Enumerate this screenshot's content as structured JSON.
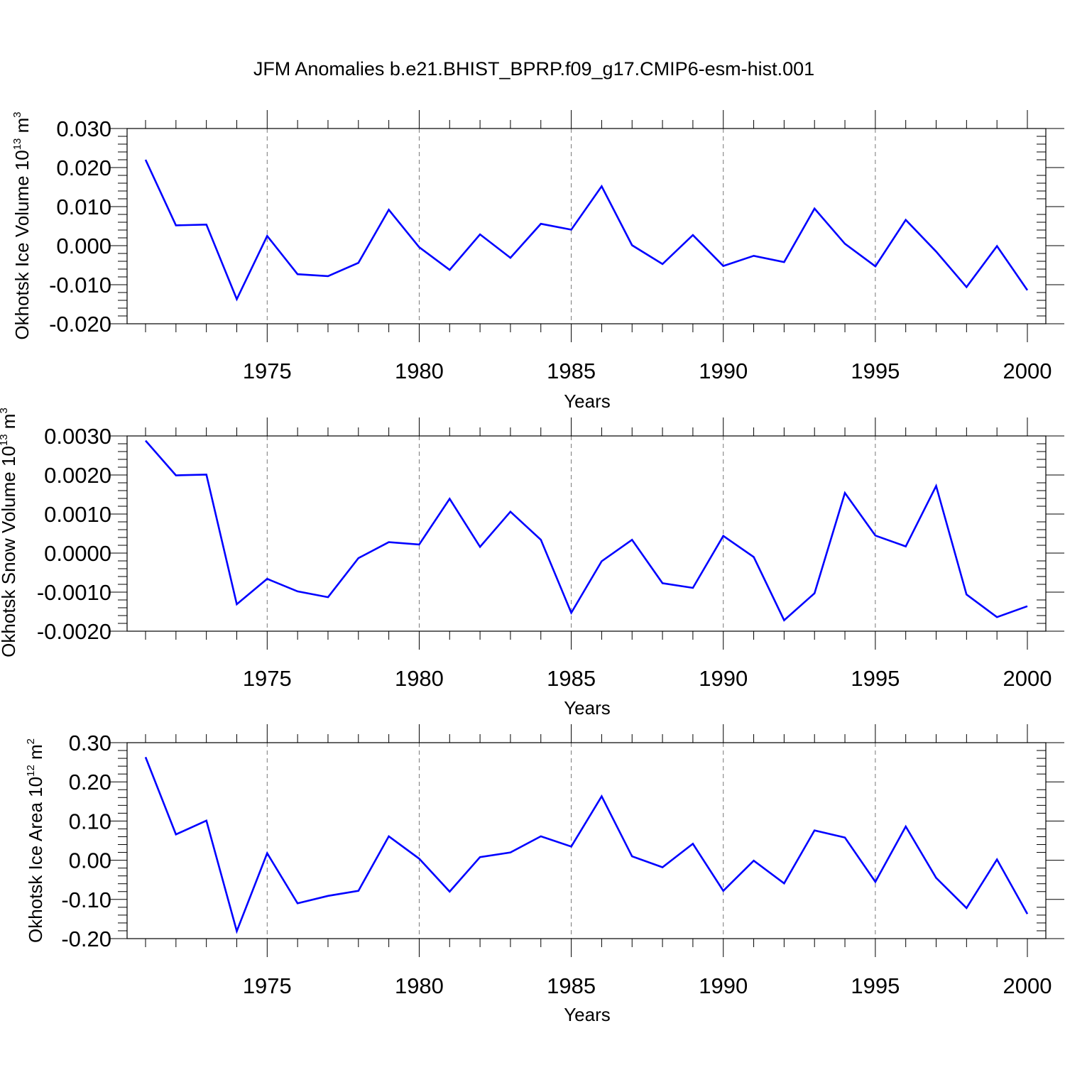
{
  "figure": {
    "title": "JFM Anomalies b.e21.BHIST_BPRP.f09_g17.CMIP6-esm-hist.001"
  },
  "chart_data": [
    {
      "type": "line",
      "title": "",
      "xlabel": "Years",
      "ylabel_main": "Okhotsk Ice Volume 10",
      "ylabel_exp": "13",
      "ylabel_unit": " m",
      "ylabel_unit_exp": "3",
      "xlim": [
        1971,
        2000
      ],
      "ylim": [
        -0.02,
        0.03
      ],
      "ytick_values": [
        -0.02,
        -0.01,
        0.0,
        0.01,
        0.02,
        0.03
      ],
      "ytick_labels": [
        "-0.020",
        "-0.010",
        "0.000",
        "0.010",
        "0.020",
        "0.030"
      ],
      "xtick_values": [
        1975,
        1980,
        1985,
        1990,
        1995,
        2000
      ],
      "xtick_labels": [
        "1975",
        "1980",
        "1985",
        "1990",
        "1995",
        "2000"
      ],
      "grid_x": [
        1975,
        1980,
        1985,
        1990,
        1995
      ],
      "line_color": "#0000ff",
      "series": [
        {
          "name": "Okhotsk Ice Volume",
          "x": [
            1971,
            1972,
            1973,
            1974,
            1975,
            1976,
            1977,
            1978,
            1979,
            1980,
            1981,
            1982,
            1983,
            1984,
            1985,
            1986,
            1987,
            1988,
            1989,
            1990,
            1991,
            1992,
            1993,
            1994,
            1995,
            1996,
            1997,
            1998,
            1999,
            2000
          ],
          "values": [
            0.022,
            0.0052,
            0.0054,
            -0.0137,
            0.0025,
            -0.0073,
            -0.0078,
            -0.0044,
            0.0092,
            -0.0004,
            -0.0062,
            0.0029,
            -0.0031,
            0.0056,
            0.0041,
            0.0152,
            0.0001,
            -0.0047,
            0.0027,
            -0.0052,
            -0.0026,
            -0.0042,
            0.0095,
            0.0005,
            -0.0053,
            0.0066,
            -0.0015,
            -0.0106,
            -0.0001,
            -0.0114
          ]
        }
      ]
    },
    {
      "type": "line",
      "title": "",
      "xlabel": "Years",
      "ylabel_main": "Okhotsk Snow Volume 10",
      "ylabel_exp": "13",
      "ylabel_unit": " m",
      "ylabel_unit_exp": "3",
      "xlim": [
        1971,
        2000
      ],
      "ylim": [
        -0.002,
        0.003
      ],
      "ytick_values": [
        -0.002,
        -0.001,
        0.0,
        0.001,
        0.002,
        0.003
      ],
      "ytick_labels": [
        "-0.0020",
        "-0.0010",
        "0.0000",
        "0.0010",
        "0.0020",
        "0.0030"
      ],
      "xtick_values": [
        1975,
        1980,
        1985,
        1990,
        1995,
        2000
      ],
      "xtick_labels": [
        "1975",
        "1980",
        "1985",
        "1990",
        "1995",
        "2000"
      ],
      "grid_x": [
        1975,
        1980,
        1985,
        1990,
        1995
      ],
      "line_color": "#0000ff",
      "series": [
        {
          "name": "Okhotsk Snow Volume",
          "x": [
            1971,
            1972,
            1973,
            1974,
            1975,
            1976,
            1977,
            1978,
            1979,
            1980,
            1981,
            1982,
            1983,
            1984,
            1985,
            1986,
            1987,
            1988,
            1989,
            1990,
            1991,
            1992,
            1993,
            1994,
            1995,
            1996,
            1997,
            1998,
            1999,
            2000
          ],
          "values": [
            0.00288,
            0.00199,
            0.00201,
            -0.00131,
            -0.00066,
            -0.00098,
            -0.00113,
            -0.00013,
            0.00028,
            0.00022,
            0.00139,
            0.00016,
            0.00106,
            0.00034,
            -0.00153,
            -0.00021,
            0.00034,
            -0.00077,
            -0.00089,
            0.00044,
            -0.0001,
            -0.00172,
            -0.00103,
            0.00154,
            0.00045,
            0.00017,
            0.00172,
            -0.00106,
            -0.00164,
            -0.00136
          ]
        }
      ]
    },
    {
      "type": "line",
      "title": "",
      "xlabel": "Years",
      "ylabel_main": "Okhotsk Ice Area 10",
      "ylabel_exp": "12",
      "ylabel_unit": " m",
      "ylabel_unit_exp": "2",
      "xlim": [
        1971,
        2000
      ],
      "ylim": [
        -0.2,
        0.3
      ],
      "ytick_values": [
        -0.2,
        -0.1,
        0.0,
        0.1,
        0.2,
        0.3
      ],
      "ytick_labels": [
        "-0.20",
        "-0.10",
        "0.00",
        "0.10",
        "0.20",
        "0.30"
      ],
      "xtick_values": [
        1975,
        1980,
        1985,
        1990,
        1995,
        2000
      ],
      "xtick_labels": [
        "1975",
        "1980",
        "1985",
        "1990",
        "1995",
        "2000"
      ],
      "grid_x": [
        1975,
        1980,
        1985,
        1990,
        1995
      ],
      "line_color": "#0000ff",
      "series": [
        {
          "name": "Okhotsk Ice Area",
          "x": [
            1971,
            1972,
            1973,
            1974,
            1975,
            1976,
            1977,
            1978,
            1979,
            1980,
            1981,
            1982,
            1983,
            1984,
            1985,
            1986,
            1987,
            1988,
            1989,
            1990,
            1991,
            1992,
            1993,
            1994,
            1995,
            1996,
            1997,
            1998,
            1999,
            2000
          ],
          "values": [
            0.263,
            0.066,
            0.101,
            -0.181,
            0.018,
            -0.11,
            -0.091,
            -0.078,
            0.061,
            0.004,
            -0.08,
            0.008,
            0.02,
            0.061,
            0.035,
            0.163,
            0.01,
            -0.018,
            0.042,
            -0.078,
            -0.001,
            -0.059,
            0.076,
            0.058,
            -0.055,
            0.086,
            -0.045,
            -0.122,
            0.002,
            -0.137
          ]
        }
      ]
    }
  ]
}
